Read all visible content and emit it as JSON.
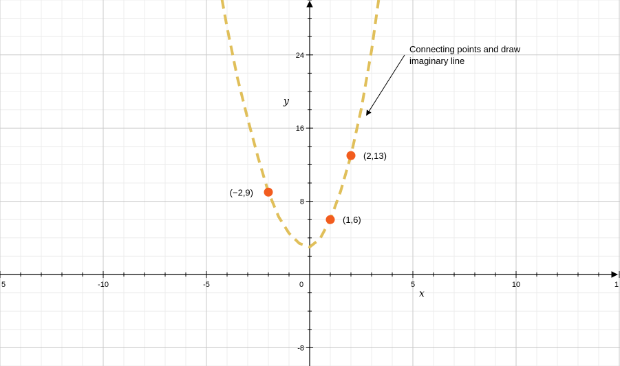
{
  "chart_data": {
    "type": "line",
    "title": "",
    "xlabel": "x",
    "ylabel": "y",
    "xlim": [
      -15,
      15
    ],
    "ylim": [
      -10,
      30
    ],
    "grid": true,
    "x_major_ticks": [
      -10,
      -5,
      0,
      5,
      10
    ],
    "x_edge_tick_labels": [
      "5",
      "1"
    ],
    "x_tick_labels": [
      "-10",
      "-5",
      "0",
      "5",
      "10"
    ],
    "y_major_ticks": [
      -8,
      8,
      16,
      24
    ],
    "y_tick_labels": [
      "-8",
      "8",
      "16",
      "24"
    ],
    "series": [
      {
        "style": "dashed",
        "color": "#e0bf5a",
        "x": [
          -4.25,
          -4,
          -3.5,
          -3,
          -2.5,
          -2,
          -1.5,
          -1,
          -0.5,
          0,
          0.5,
          1,
          1.5,
          2,
          2.5,
          3,
          3.34
        ],
        "y": [
          30.1,
          27,
          21.5,
          17,
          12.8,
          9,
          6.3,
          4.5,
          3.4,
          3,
          3.9,
          6,
          9.1,
          13,
          18.1,
          24.5,
          30
        ]
      }
    ],
    "points": [
      {
        "x": -2,
        "y": 9,
        "label": "(−2,9)"
      },
      {
        "x": 1,
        "y": 6,
        "label": "(1,6)"
      },
      {
        "x": 2,
        "y": 13,
        "label": "(2,13)"
      }
    ],
    "point_color": "#f25c1e",
    "annotation": {
      "lines": [
        "Connecting points and draw",
        "imaginary line"
      ],
      "arrow_target": {
        "x": 2.75,
        "y": 17.4
      }
    }
  }
}
